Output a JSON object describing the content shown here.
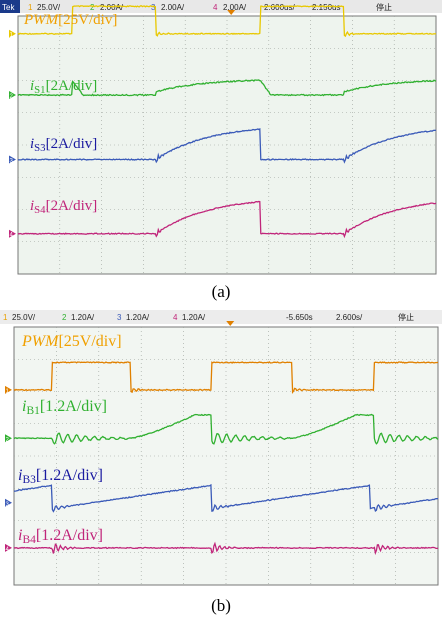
{
  "chart_data": [
    {
      "type": "line",
      "caption": "(a)",
      "header": {
        "scope_label": "Tek",
        "ch1_num": "1",
        "ch1_scale": "25.0V/",
        "ch2_num": "2",
        "ch2_scale": "2.00A/",
        "ch3_num": "3",
        "ch3_scale": "2.00A/",
        "ch4_num": "4",
        "ch4_scale": "2.00A/",
        "time_scale": "2.600us/",
        "offset": "2.150us",
        "status": "停止"
      },
      "grid": {
        "rows": 8,
        "cols": 10
      },
      "background": "#eef4ee",
      "series": [
        {
          "name": "PWM[25V/div]",
          "name_italic": "PWM",
          "name_rest": "[25V/div]",
          "channel": "1",
          "color": "#e8c800",
          "label_color": "#f0a000",
          "shape": "pulse",
          "baseline_div": 0.55,
          "amp_div": 0.85
        },
        {
          "name": "iS1[2A/div]",
          "name_italic": "i",
          "name_sub": "S1",
          "name_rest": "[2A/div]",
          "channel": "2",
          "color": "#30b030",
          "label_color": "#30b030",
          "shape": "ramp_after",
          "baseline_div": 2.45,
          "amp_div": 0.5
        },
        {
          "name": "iS3[2A/div]",
          "name_italic": "i",
          "name_sub": "S3",
          "name_rest": "[2A/div]",
          "channel": "3",
          "color": "#3a5ab8",
          "label_color": "#1a1aa0",
          "shape": "rise_during_low",
          "baseline_div": 4.45,
          "amp_div": 0.95
        },
        {
          "name": "iS4[2A/div]",
          "name_italic": "i",
          "name_sub": "S4",
          "name_rest": "[2A/div]",
          "channel": "4",
          "color": "#c0257a",
          "label_color": "#c0257a",
          "shape": "rise_during_low",
          "baseline_div": 6.75,
          "amp_div": 1.0
        }
      ],
      "pwm_high_intervals_div": [
        [
          1.3,
          3.3
        ],
        [
          5.8,
          7.8
        ],
        [
          10.3,
          12.3
        ]
      ]
    },
    {
      "type": "line",
      "caption": "(b)",
      "header": {
        "ch1_num": "1",
        "ch1_scale": "25.0V/",
        "ch2_num": "2",
        "ch2_scale": "1.20A/",
        "ch3_num": "3",
        "ch3_scale": "1.20A/",
        "ch4_num": "4",
        "ch4_scale": "1.20A/",
        "offset": "-5.650s",
        "time_scale": "2.600s/",
        "status": "停止"
      },
      "grid": {
        "rows": 8,
        "cols": 10
      },
      "background": "#f2f6f2",
      "series": [
        {
          "name": "PWM[25V/div]",
          "name_italic": "PWM",
          "name_rest": "[25V/div]",
          "channel": "1",
          "color": "#e08000",
          "label_color": "#f0a000",
          "shape": "pulse",
          "baseline_div": 1.95,
          "amp_div": 0.85
        },
        {
          "name": "iB1[1.2A/div]",
          "name_italic": "i",
          "name_sub": "B1",
          "name_rest": "[1.2A/div]",
          "channel": "2",
          "color": "#30b030",
          "label_color": "#30b030",
          "shape": "ring_then_rise",
          "baseline_div": 3.45,
          "amp_div": 0.85
        },
        {
          "name": "iB3[1.2A/div]",
          "name_italic": "i",
          "name_sub": "B3",
          "name_rest": "[1.2A/div]",
          "channel": "3",
          "color": "#3a5ab8",
          "label_color": "#1a1aa0",
          "shape": "slow_ramp",
          "baseline_div": 5.45,
          "amp_div": 0.45
        },
        {
          "name": "iB4[1.2A/div]",
          "name_italic": "i",
          "name_sub": "B4",
          "name_rest": "[1.2A/div]",
          "channel": "4",
          "color": "#c0257a",
          "label_color": "#c0257a",
          "shape": "flat_ring",
          "baseline_div": 6.85,
          "amp_div": 0.15
        }
      ],
      "pwm_high_intervals_div": [
        [
          0.9,
          2.75
        ],
        [
          4.65,
          6.55
        ],
        [
          8.5,
          10.35
        ]
      ]
    }
  ]
}
